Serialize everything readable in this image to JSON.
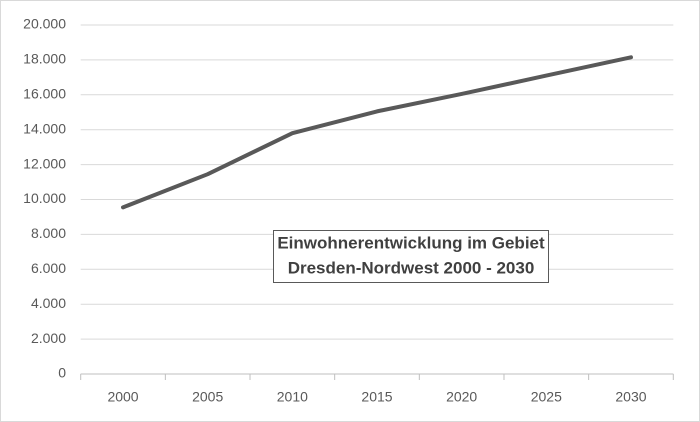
{
  "chart_data": {
    "type": "line",
    "title": [
      "Einwohnerentwicklung im Gebiet",
      "Dresden-Nordwest 2000 - 2030"
    ],
    "categories": [
      "2000",
      "2005",
      "2010",
      "2015",
      "2020",
      "2025",
      "2030"
    ],
    "values": [
      9550,
      11450,
      13800,
      15050,
      16050,
      17100,
      18150
    ],
    "color": "#595959",
    "ylim": [
      0,
      20000
    ],
    "yticks": [
      0,
      {
        "value": 2000,
        "label": "2.000"
      },
      {
        "value": 4000,
        "label": "4.000"
      },
      {
        "value": 6000,
        "label": "6.000"
      },
      {
        "value": 8000,
        "label": "8.000"
      },
      {
        "value": 10000,
        "label": "10.000"
      },
      {
        "value": 12000,
        "label": "12.000"
      },
      {
        "value": 14000,
        "label": "14.000"
      },
      {
        "value": 16000,
        "label": "16.000"
      },
      {
        "value": 18000,
        "label": "18.000"
      },
      {
        "value": 20000,
        "label": "20.000"
      }
    ],
    "grid": true
  }
}
